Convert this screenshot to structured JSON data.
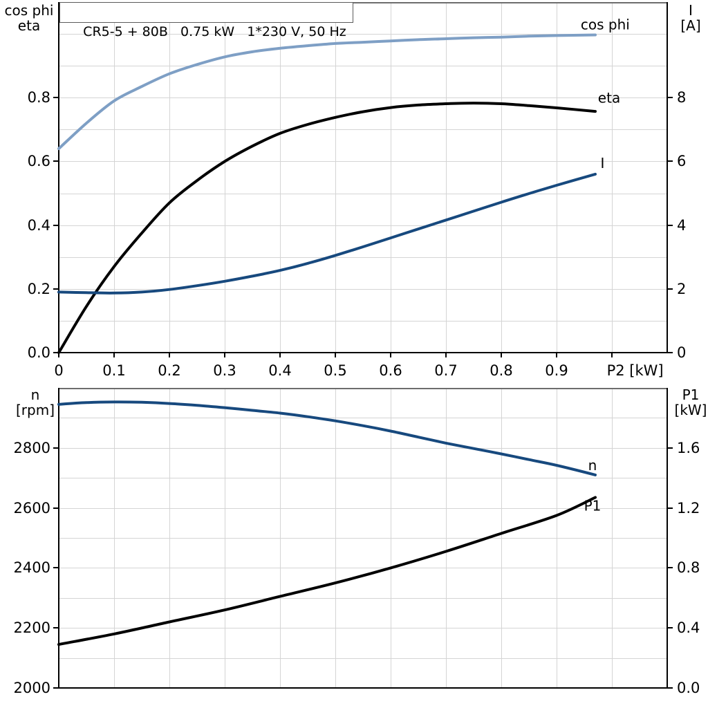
{
  "header": {
    "title": "CR5-5 + 80B   0.75 kW   1*230 V, 50 Hz"
  },
  "chart_data": [
    {
      "type": "line",
      "title": "CR5-5 + 80B   0.75 kW   1*230 V, 50 Hz",
      "x_axis": {
        "label": "P2 [kW]",
        "label_x": 1.042,
        "range": [
          0,
          1.1
        ],
        "grid_step": 0.1,
        "tick_values": [
          0,
          0.1,
          0.2,
          0.3,
          0.4,
          0.5,
          0.6,
          0.7,
          0.8,
          0.9,
          1.0
        ],
        "tick_labels": [
          "0",
          "0.1",
          "0.2",
          "0.3",
          "0.4",
          "0.5",
          "0.6",
          "0.7",
          "0.8",
          "0.9",
          ""
        ]
      },
      "y_left": {
        "labels": [
          "cos phi",
          "eta"
        ],
        "range": [
          0,
          1.1
        ],
        "grid_step": 0.1,
        "tick_values": [
          0,
          0.2,
          0.4,
          0.6,
          0.8
        ],
        "tick_labels": [
          "0.0",
          "0.2",
          "0.4",
          "0.6",
          "0.8"
        ]
      },
      "y_right": {
        "labels": [
          "I",
          "[A]"
        ],
        "range": [
          0,
          11
        ],
        "grid_step": 1,
        "tick_values": [
          0,
          2,
          4,
          6,
          8
        ],
        "tick_labels": [
          "0",
          "2",
          "4",
          "6",
          "8"
        ]
      },
      "legend": "inline curve labels",
      "series": [
        {
          "name": "cos phi",
          "axis": "left",
          "color": "#7E9FC5",
          "width": 4,
          "label": {
            "x": 0.988,
            "y": 1.03
          },
          "x": [
            0,
            0.05,
            0.1,
            0.15,
            0.2,
            0.25,
            0.3,
            0.35,
            0.4,
            0.45,
            0.5,
            0.55,
            0.6,
            0.65,
            0.7,
            0.75,
            0.8,
            0.85,
            0.9,
            0.97
          ],
          "y": [
            0.64,
            0.72,
            0.79,
            0.835,
            0.875,
            0.904,
            0.928,
            0.944,
            0.955,
            0.963,
            0.97,
            0.974,
            0.978,
            0.982,
            0.985,
            0.988,
            0.99,
            0.993,
            0.995,
            0.997
          ]
        },
        {
          "name": "eta",
          "axis": "left",
          "color": "#000000",
          "width": 4,
          "label": {
            "x": 0.995,
            "y": 0.8
          },
          "x": [
            0,
            0.05,
            0.1,
            0.15,
            0.2,
            0.25,
            0.3,
            0.35,
            0.4,
            0.45,
            0.5,
            0.55,
            0.6,
            0.65,
            0.7,
            0.75,
            0.8,
            0.85,
            0.9,
            0.97
          ],
          "y": [
            0,
            0.145,
            0.27,
            0.375,
            0.47,
            0.54,
            0.6,
            0.648,
            0.688,
            0.716,
            0.738,
            0.756,
            0.769,
            0.777,
            0.781,
            0.783,
            0.781,
            0.775,
            0.768,
            0.757
          ]
        },
        {
          "name": "I",
          "axis": "right",
          "color": "#17497E",
          "width": 4,
          "label": {
            "x": 0.983,
            "y": 5.95
          },
          "x": [
            0,
            0.05,
            0.1,
            0.15,
            0.2,
            0.25,
            0.3,
            0.35,
            0.4,
            0.45,
            0.5,
            0.55,
            0.6,
            0.65,
            0.7,
            0.75,
            0.8,
            0.85,
            0.9,
            0.97
          ],
          "y": [
            1.9,
            1.88,
            1.87,
            1.9,
            1.98,
            2.1,
            2.24,
            2.4,
            2.58,
            2.8,
            3.05,
            3.32,
            3.6,
            3.88,
            4.16,
            4.44,
            4.72,
            4.99,
            5.25,
            5.6
          ]
        }
      ]
    },
    {
      "type": "line",
      "title": "",
      "x_axis": {
        "label": "",
        "label_x": null,
        "range": [
          0,
          1.1
        ],
        "grid_step": 0.1,
        "tick_values": [],
        "tick_labels": []
      },
      "y_left": {
        "labels": [
          "n",
          "[rpm]"
        ],
        "range": [
          2000,
          3000
        ],
        "grid_step": 100,
        "tick_values": [
          2000,
          2200,
          2400,
          2600,
          2800
        ],
        "tick_labels": [
          "2000",
          "2200",
          "2400",
          "2600",
          "2800"
        ]
      },
      "y_right": {
        "labels": [
          "P1",
          "[kW]"
        ],
        "range": [
          0,
          2.0
        ],
        "grid_step": 0.2,
        "tick_values": [
          0,
          0.4,
          0.8,
          1.2,
          1.6
        ],
        "tick_labels": [
          "0.0",
          "0.4",
          "0.8",
          "1.2",
          "1.6"
        ]
      },
      "legend": "inline curve labels",
      "series": [
        {
          "name": "n",
          "axis": "left",
          "color": "#17497E",
          "width": 4,
          "label": {
            "x": 0.965,
            "y": 2742
          },
          "x": [
            0,
            0.05,
            0.1,
            0.15,
            0.2,
            0.25,
            0.3,
            0.35,
            0.4,
            0.45,
            0.5,
            0.55,
            0.6,
            0.65,
            0.7,
            0.75,
            0.8,
            0.85,
            0.9,
            0.97
          ],
          "y": [
            2945,
            2951,
            2953,
            2952,
            2948,
            2942,
            2934,
            2925,
            2916,
            2904,
            2890,
            2874,
            2856,
            2836,
            2816,
            2798,
            2780,
            2761,
            2742,
            2710
          ]
        },
        {
          "name": "P1",
          "axis": "right",
          "color": "#000000",
          "width": 4,
          "label": {
            "x": 0.965,
            "y": 1.215
          },
          "x": [
            0,
            0.1,
            0.2,
            0.3,
            0.4,
            0.5,
            0.6,
            0.7,
            0.8,
            0.9,
            0.97
          ],
          "y": [
            0.29,
            0.36,
            0.44,
            0.52,
            0.61,
            0.7,
            0.8,
            0.91,
            1.03,
            1.15,
            1.27
          ]
        }
      ]
    }
  ],
  "colors": {
    "grid": "#d4d4d4",
    "frame_top": "#6d6d6d",
    "axis": "#000000",
    "light_blue": "#7E9FC5",
    "dark_blue": "#17497E"
  }
}
